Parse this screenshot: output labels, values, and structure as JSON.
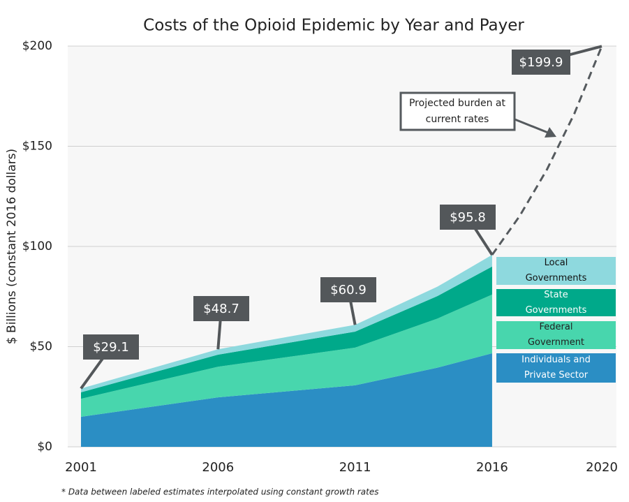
{
  "chart_data": {
    "type": "stacked_area",
    "title": "Costs of the Opioid Epidemic by Year and Payer",
    "y_label": "$ Billions (constant 2016 dollars)",
    "footnote": "* Data between labeled estimates interpolated using constant growth rates",
    "x": [
      2001,
      2006,
      2011,
      2014,
      2016
    ],
    "series": [
      {
        "name": "Individuals and Private Sector",
        "color": "#2b8ec4",
        "values": [
          15,
          24.7,
          30.7,
          39.5,
          46.7
        ]
      },
      {
        "name": "Federal Government",
        "color": "#48d6ad",
        "values": [
          9,
          15.3,
          18.8,
          24.5,
          29.3
        ]
      },
      {
        "name": "State Governments",
        "color": "#00a98a",
        "values": [
          3.2,
          6,
          8,
          11.2,
          14
        ]
      },
      {
        "name": "Local Governments",
        "color": "#8ed9de",
        "values": [
          1.9,
          2.7,
          3.4,
          4.7,
          5.8
        ]
      }
    ],
    "projection": {
      "label": "Projected burden at current rates",
      "color": "#555a5e",
      "x": [
        2016,
        2017,
        2018,
        2019,
        2020
      ],
      "values": [
        95.8,
        115.1,
        138.4,
        166.3,
        199.9
      ]
    },
    "callouts": {
      "x": [
        2001,
        2006,
        2011,
        2016,
        2020
      ],
      "values": [
        29.1,
        48.7,
        60.9,
        95.8,
        199.9
      ],
      "value_labels": [
        "$29.1",
        "$48.7",
        "$60.9",
        "$95.8",
        "$199.9"
      ],
      "color": "#53575a"
    },
    "xlim": [
      2001,
      2020
    ],
    "xticks": [
      2001,
      2006,
      2011,
      2016,
      2020
    ],
    "ylim": [
      0,
      200
    ],
    "yticks": [
      {
        "value": 0,
        "label": "$0"
      },
      {
        "value": 50,
        "label": "$50"
      },
      {
        "value": 100,
        "label": "$100"
      },
      {
        "value": 150,
        "label": "$150"
      },
      {
        "value": 200,
        "label": "$200"
      }
    ],
    "grid": true
  }
}
